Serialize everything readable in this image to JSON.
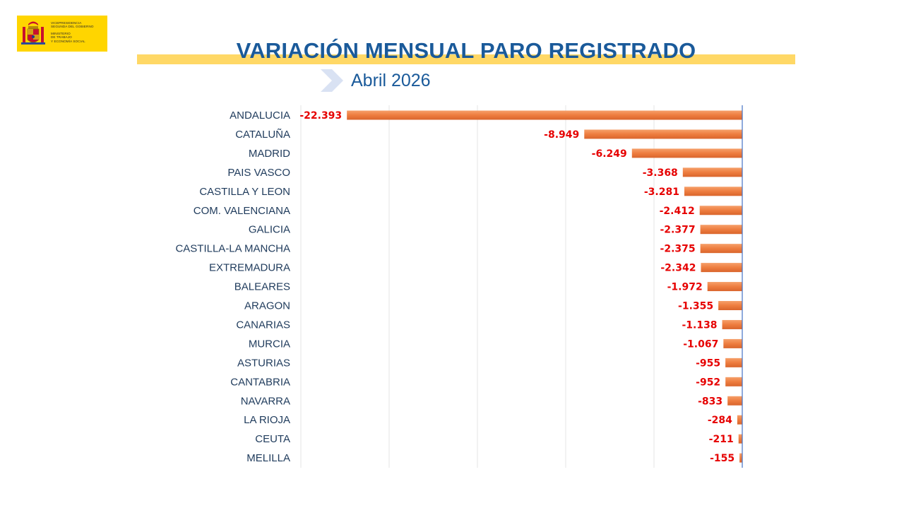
{
  "header": {
    "logo_text": [
      "VICEPRESIDENCIA",
      "SEGUNDA DEL GOBIERNO",
      "MINISTERIO",
      "DE TRABAJO",
      "Y ECONOMÍA SOCIAL"
    ],
    "title": "VARIACIÓN MENSUAL PARO REGISTRADO",
    "subtitle": "Abril 2026"
  },
  "colors": {
    "title": "#1a5a9a",
    "band": "#ffd866",
    "bar": "#ee7d3f",
    "value_label": "#e60000",
    "axis": "#4472c4"
  },
  "chart_data": {
    "type": "bar",
    "orientation": "horizontal",
    "title": "VARIACIÓN MENSUAL PARO REGISTRADO",
    "subtitle": "Abril 2026",
    "categories": [
      "ANDALUCIA",
      "CATALUÑA",
      "MADRID",
      "PAIS VASCO",
      "CASTILLA Y LEON",
      "COM. VALENCIANA",
      "GALICIA",
      "CASTILLA-LA MANCHA",
      "EXTREMADURA",
      "BALEARES",
      "ARAGON",
      "CANARIAS",
      "MURCIA",
      "ASTURIAS",
      "CANTABRIA",
      "NAVARRA",
      "LA RIOJA",
      "CEUTA",
      "MELILLA"
    ],
    "values": [
      -22393,
      -8949,
      -6249,
      -3368,
      -3281,
      -2412,
      -2377,
      -2375,
      -2342,
      -1972,
      -1355,
      -1138,
      -1067,
      -955,
      -952,
      -833,
      -284,
      -211,
      -155
    ],
    "value_labels": [
      "-22.393",
      "-8.949",
      "-6.249",
      "-3.368",
      "-3.281",
      "-2.412",
      "-2.377",
      "-2.375",
      "-2.342",
      "-1.972",
      "-1.355",
      "-1.138",
      "-1.067",
      "-955",
      "-952",
      "-833",
      "-284",
      "-211",
      "-155"
    ],
    "xlim": [
      -25000,
      0
    ],
    "grid": true,
    "xlabel": "",
    "ylabel": ""
  }
}
